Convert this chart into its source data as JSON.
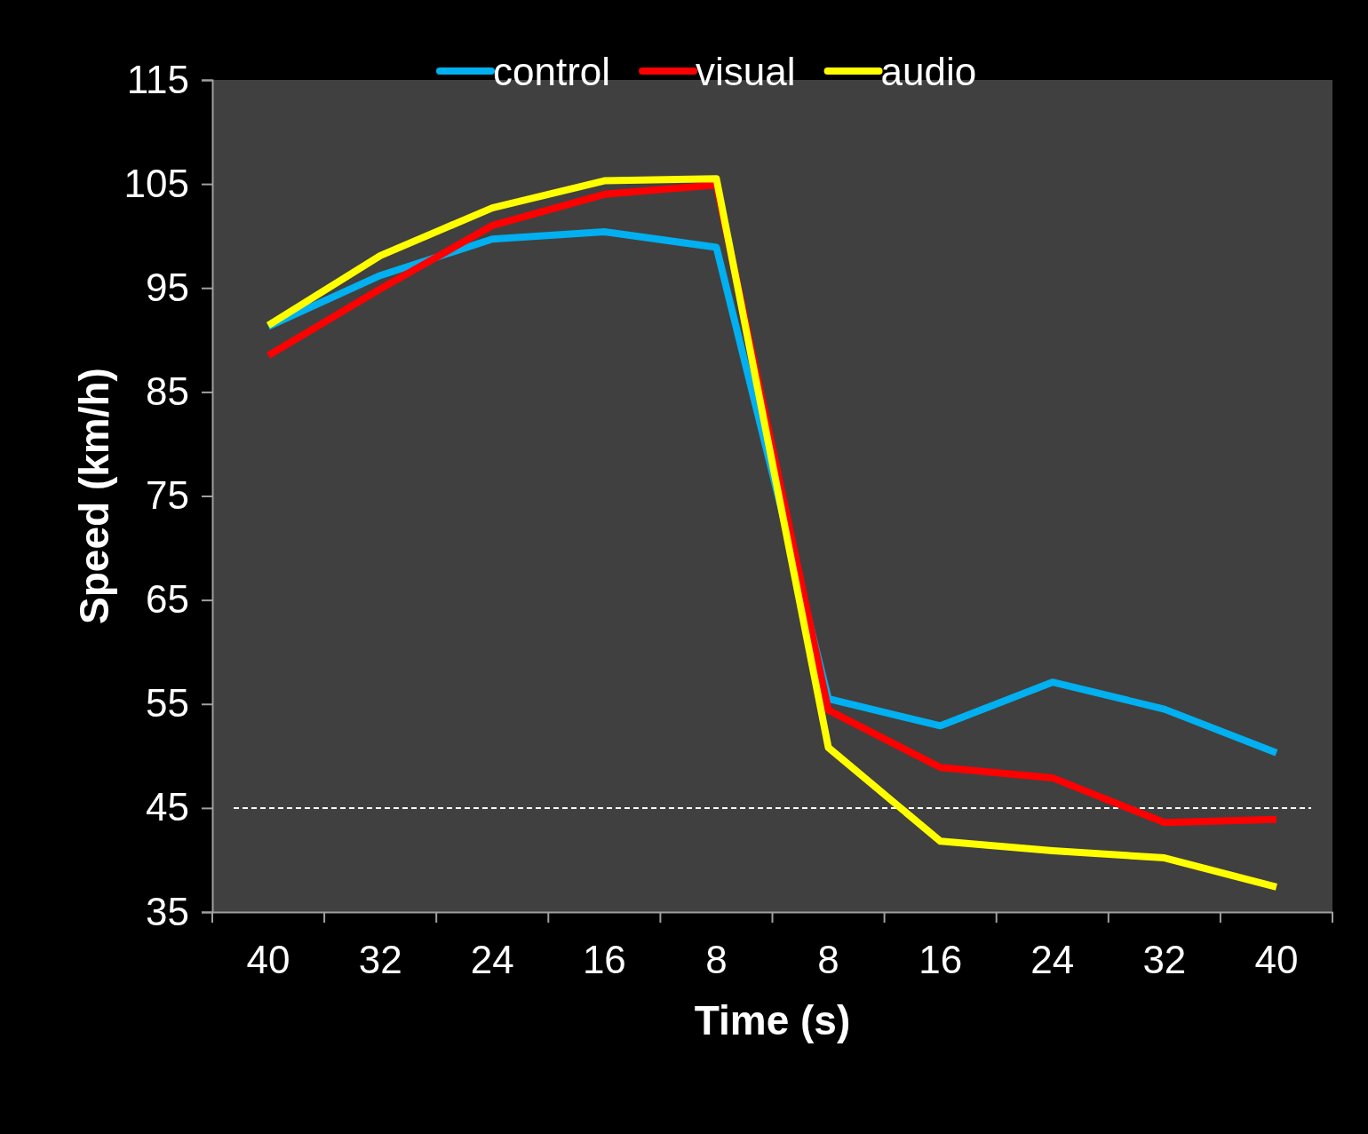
{
  "chart_data": {
    "type": "line",
    "xlabel": "Time (s)",
    "ylabel": "Speed (km/h)",
    "categories": [
      "40",
      "32",
      "24",
      "16",
      "8",
      "8",
      "16",
      "24",
      "32",
      "40"
    ],
    "series": [
      {
        "name": "control",
        "color": "#00b0f0",
        "values": [
          91.3,
          96.2,
          99.7,
          100.4,
          98.9,
          55.5,
          52.9,
          57.1,
          54.5,
          50.3
        ]
      },
      {
        "name": "visual",
        "color": "#ff0000",
        "values": [
          88.5,
          94.9,
          101.0,
          104.0,
          104.9,
          54.4,
          48.9,
          47.9,
          43.6,
          43.9
        ]
      },
      {
        "name": "audio",
        "color": "#ffff00",
        "values": [
          91.4,
          98.1,
          102.7,
          105.3,
          105.5,
          50.8,
          41.8,
          40.9,
          40.2,
          37.4
        ]
      }
    ],
    "ylim": [
      35,
      115
    ],
    "yticks": [
      35,
      45,
      55,
      65,
      75,
      85,
      95,
      105,
      115
    ],
    "ref_lines": [
      {
        "axis": "y",
        "value": 45,
        "color": "#ffffff",
        "line_style": "dashed"
      }
    ],
    "legend": "top",
    "marker": "none",
    "line_style": "solid",
    "grid": false
  }
}
